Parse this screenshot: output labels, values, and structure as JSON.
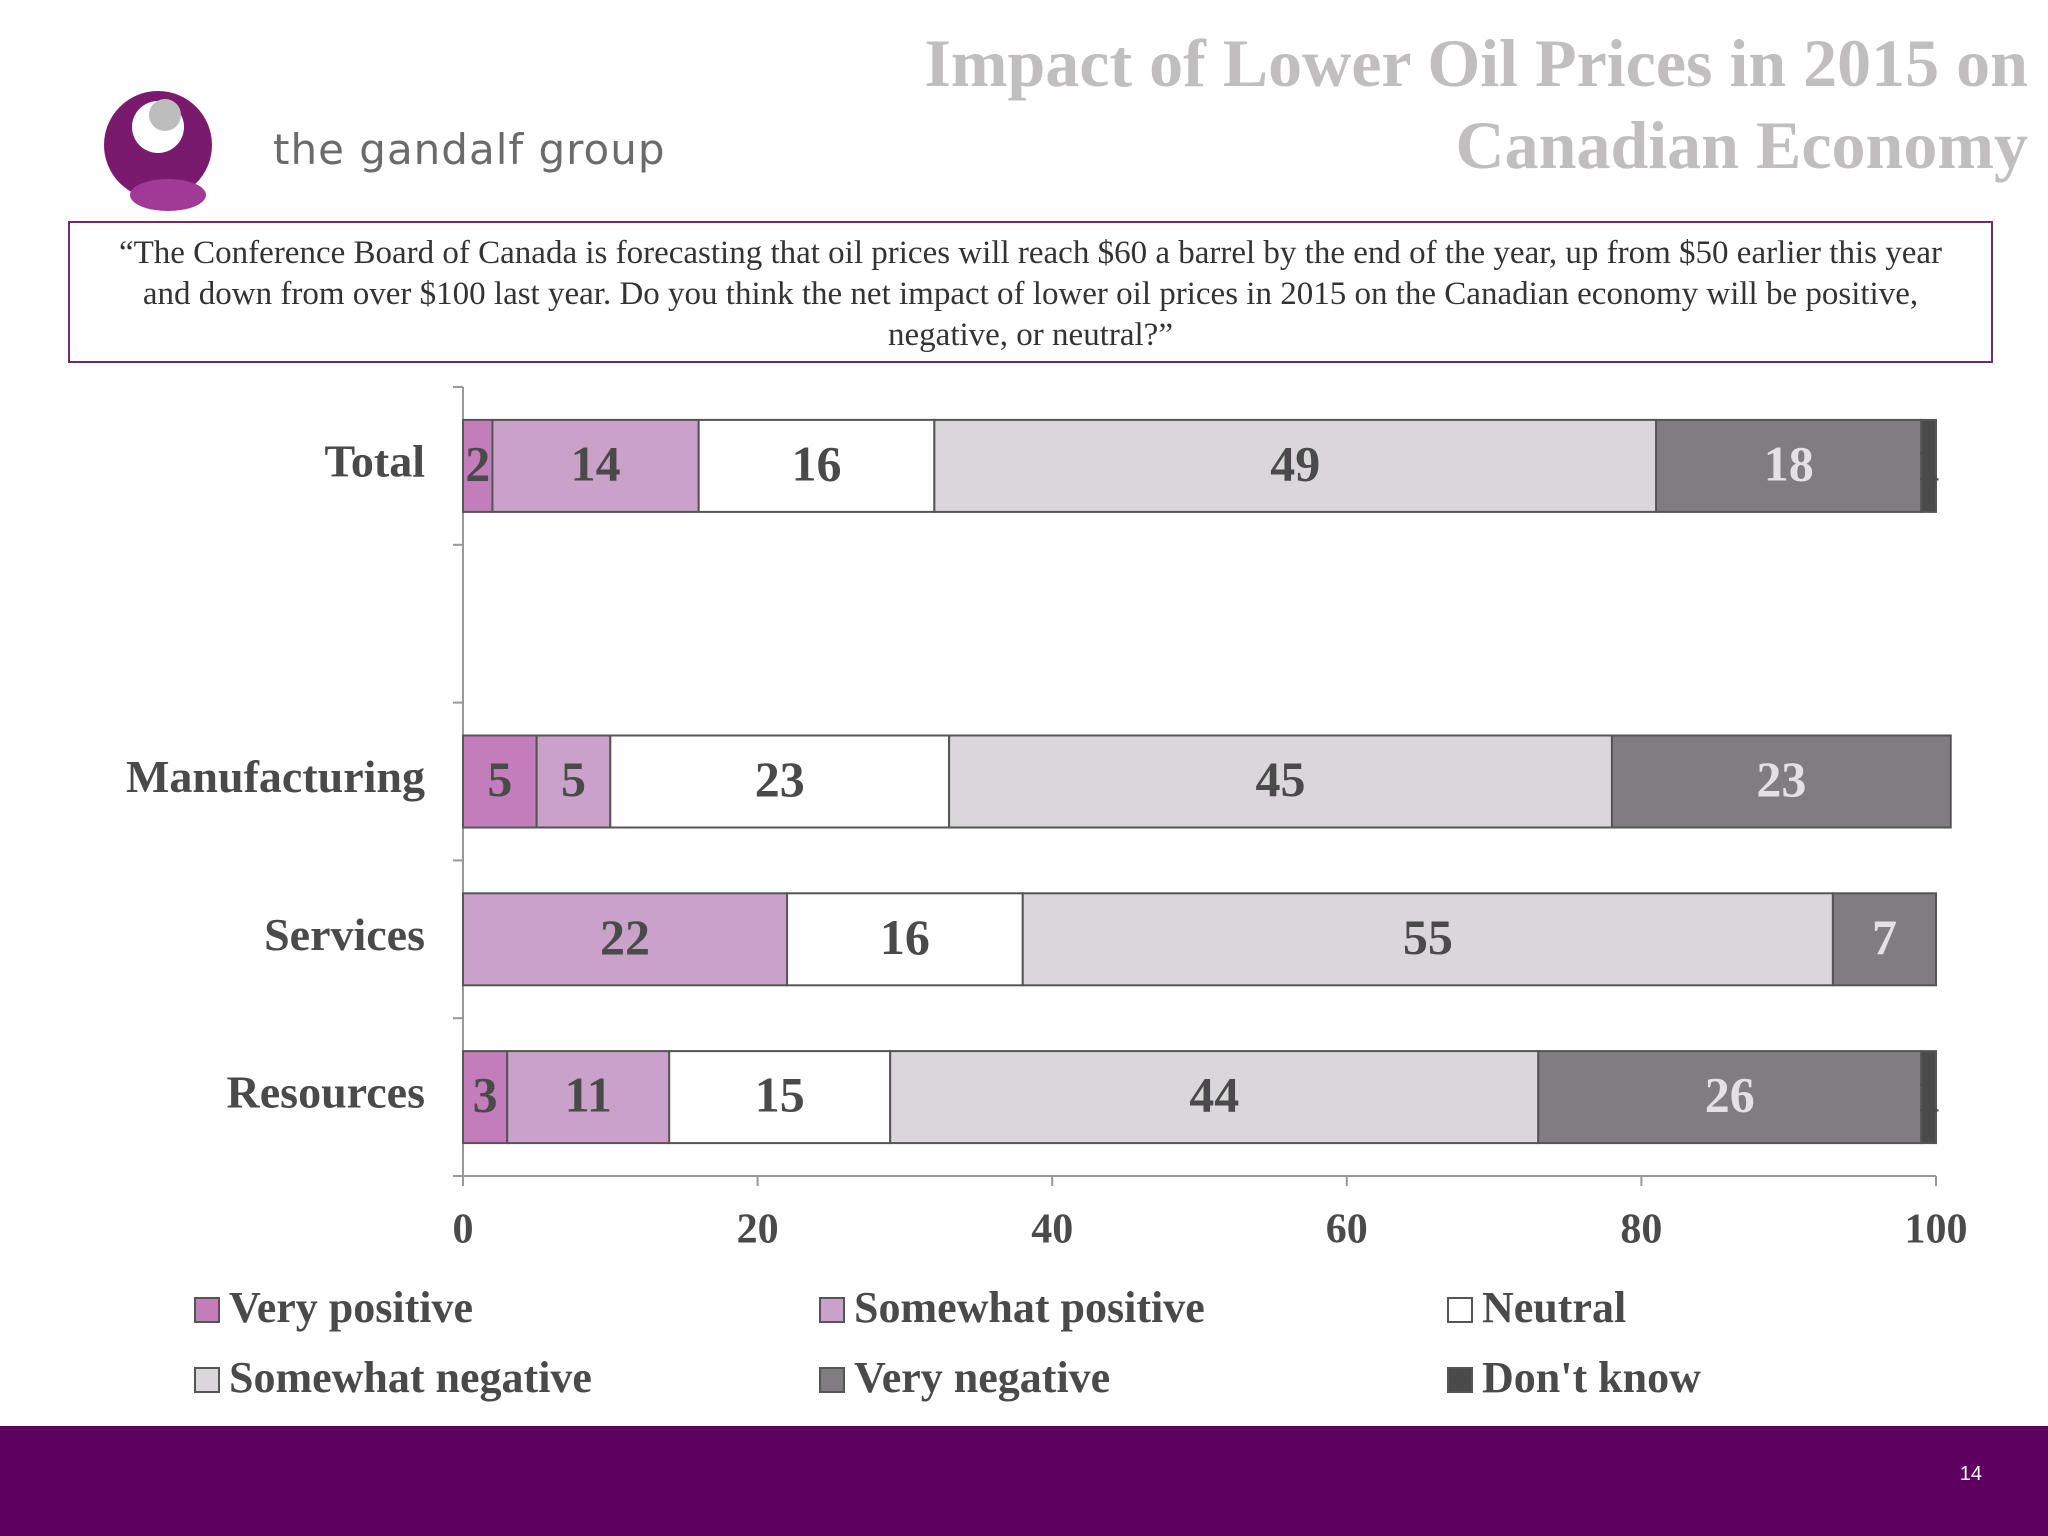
{
  "header": {
    "logo_text": "the gandalf group"
  },
  "chart_data": {
    "type": "stacked-bar-horizontal",
    "title": "Impact of Lower Oil Prices in 2015 on Canadian Economy",
    "subtitle": "“The Conference Board of Canada is forecasting that oil prices will reach $60 a barrel by the end of the year, up from $50 earlier this year and down from over $100 last year. Do you think the net impact of lower oil prices in 2015 on the Canadian economy will be positive, negative, or neutral?”",
    "categories": [
      "Total",
      null,
      "Manufacturing",
      "Services",
      "Resources"
    ],
    "series": [
      {
        "name": "Very positive",
        "color": "#c27dba",
        "values": [
          2,
          null,
          5,
          null,
          3
        ]
      },
      {
        "name": "Somewhat positive",
        "color": "#c9a1c9",
        "values": [
          14,
          null,
          5,
          22,
          11
        ]
      },
      {
        "name": "Neutral",
        "color": "#ffffff",
        "values": [
          16,
          null,
          23,
          16,
          15
        ]
      },
      {
        "name": "Somewhat negative",
        "color": "#d9d7da",
        "values": [
          49,
          null,
          45,
          55,
          44
        ]
      },
      {
        "name": "Very negative",
        "color": "#807d80",
        "values": [
          18,
          null,
          23,
          7,
          26
        ]
      },
      {
        "name": "Don't know",
        "color": "#4a4a4a",
        "values": [
          1,
          null,
          null,
          null,
          1
        ]
      }
    ],
    "xlim": [
      0,
      100
    ],
    "xticks": [
      0,
      20,
      40,
      60,
      80,
      100
    ]
  },
  "footer": {
    "page_number": "14"
  }
}
